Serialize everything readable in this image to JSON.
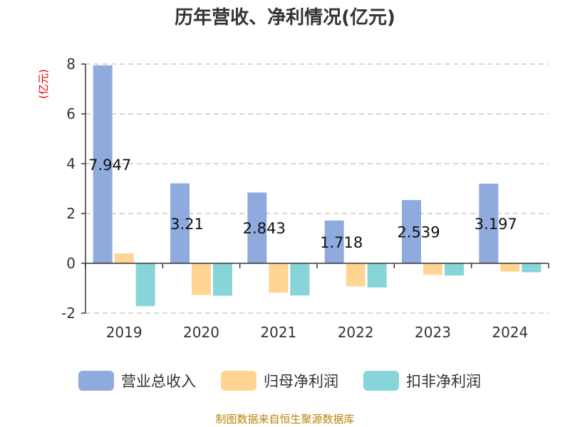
{
  "chart_data": {
    "type": "bar",
    "title": "历年营收、净利情况(亿元)",
    "unit_label": "(亿元)",
    "categories": [
      "2019",
      "2020",
      "2021",
      "2022",
      "2023",
      "2024"
    ],
    "series": [
      {
        "name": "营业总收入",
        "color": "#8faadc",
        "values": [
          7.947,
          3.21,
          2.843,
          1.718,
          2.539,
          3.197
        ],
        "labels": [
          "7.947",
          "3.21",
          "2.843",
          "1.718",
          "2.539",
          "3.197"
        ]
      },
      {
        "name": "归母净利润",
        "color": "#ffd591",
        "values": [
          0.4,
          -1.27,
          -1.18,
          -0.92,
          -0.46,
          -0.33
        ]
      },
      {
        "name": "扣非净利润",
        "color": "#87d5d8",
        "values": [
          -1.72,
          -1.3,
          -1.29,
          -0.97,
          -0.49,
          -0.36
        ]
      }
    ],
    "ylim": [
      -2,
      8
    ],
    "yticks": [
      -2,
      0,
      2,
      4,
      6,
      8
    ],
    "grid": true,
    "legend": "bottom"
  },
  "source": "制图数据来自恒生聚源数据库"
}
